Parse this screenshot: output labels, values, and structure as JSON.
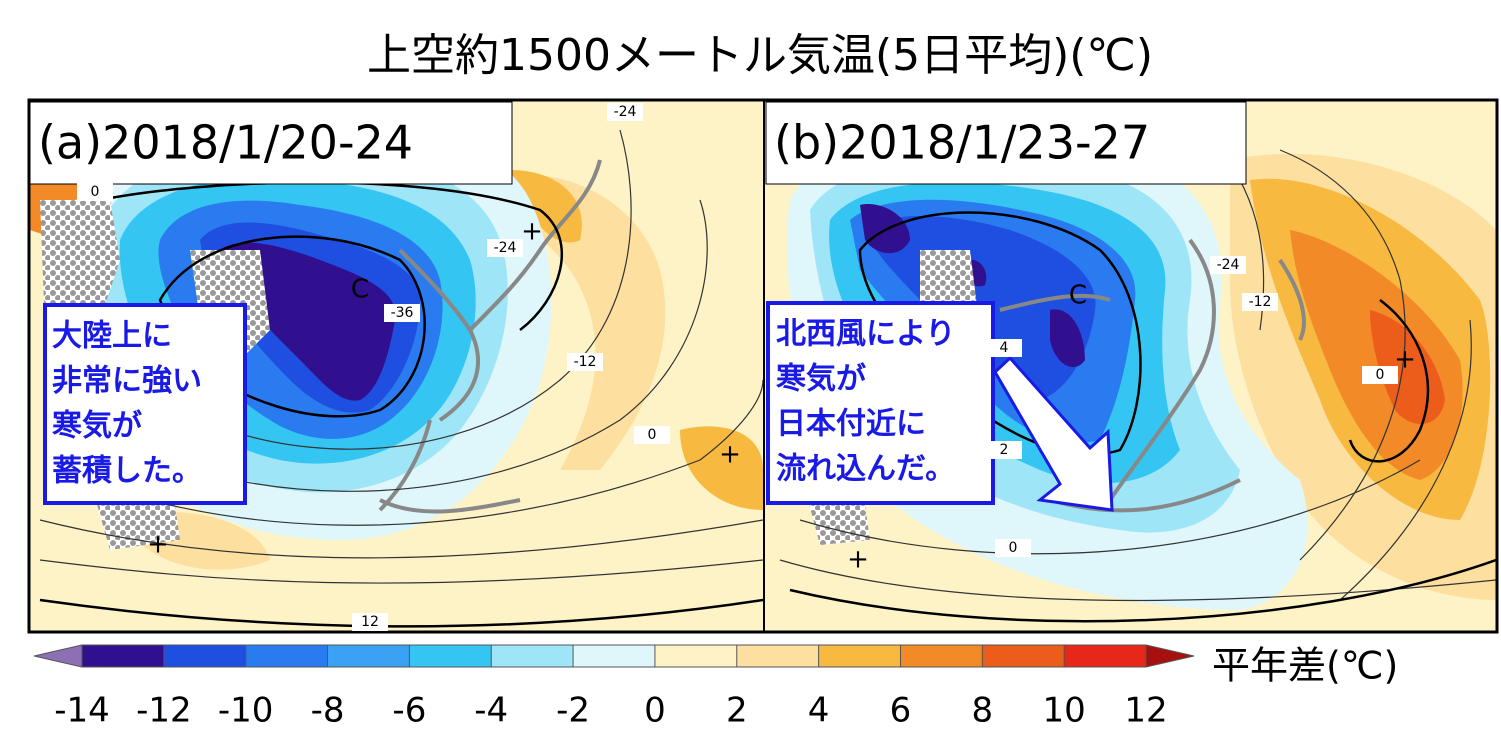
{
  "title": "上空約1500メートル気温(5日平均)(℃)",
  "panels": [
    {
      "label": "(a)2018/1/20-24",
      "annotation": [
        "大陸上に",
        "非常に強い",
        "寒気が",
        "蓄積した。"
      ],
      "contour_labels": [
        0,
        -24,
        -24,
        -36,
        -12,
        0,
        12
      ],
      "symbols": [
        "+",
        "+",
        "+",
        "C"
      ]
    },
    {
      "label": "(b)2018/1/23-27",
      "annotation": [
        "北西風により",
        "寒気が",
        "日本付近に",
        "流れ込んだ。"
      ],
      "contour_labels": [
        -24,
        -12,
        0,
        4,
        2,
        0
      ],
      "symbols": [
        "+",
        "+",
        "C"
      ]
    }
  ],
  "colorbar": {
    "ticks": [
      -14,
      -12,
      -10,
      -8,
      -6,
      -4,
      -2,
      0,
      2,
      4,
      6,
      8,
      10,
      12
    ],
    "colors": [
      "#8d6fb5",
      "#31108f",
      "#1f4fe0",
      "#2b7bf0",
      "#3ba1f5",
      "#35c5f2",
      "#9ee6f7",
      "#dff7fb",
      "#fdf3c6",
      "#fde0a0",
      "#f8b941",
      "#f28a27",
      "#ec5d1c",
      "#e6271a",
      "#a80f0f"
    ],
    "unit": "平年差(℃)"
  }
}
